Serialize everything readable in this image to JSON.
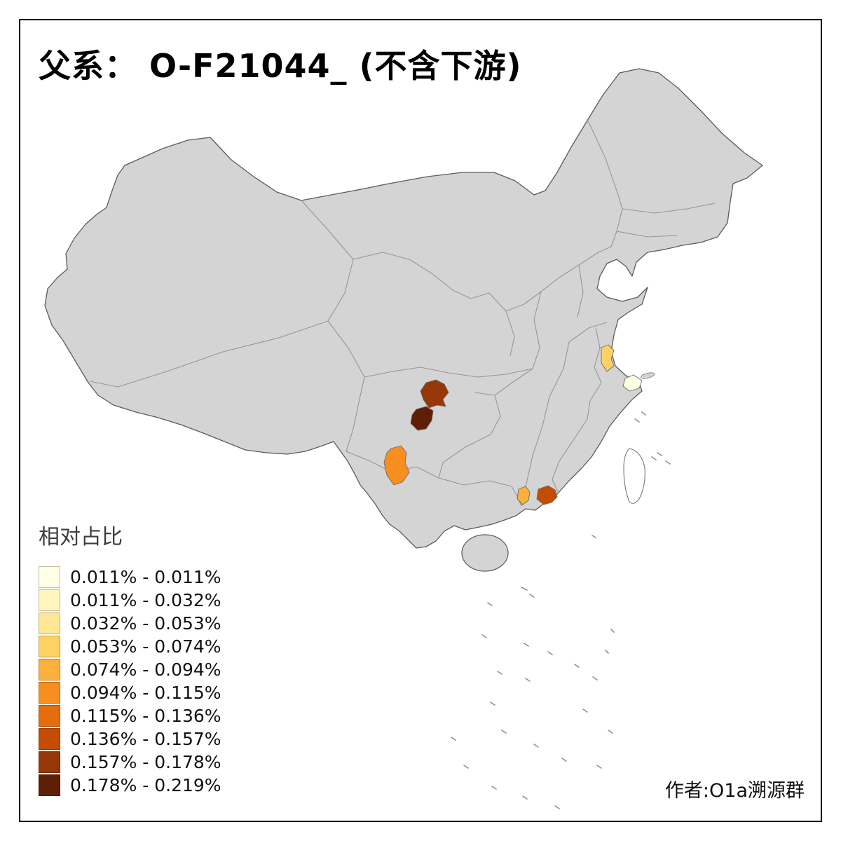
{
  "title": "父系： O-F21044_ (不含下游)",
  "attribution": "作者:O1a溯源群",
  "legend": {
    "title": "相对占比",
    "classes": [
      {
        "label": "0.011% - 0.011%",
        "color": "#FFFFE5"
      },
      {
        "label": "0.011% - 0.032%",
        "color": "#FFF6BE"
      },
      {
        "label": "0.032% - 0.053%",
        "color": "#FEE794"
      },
      {
        "label": "0.053% - 0.074%",
        "color": "#FED163"
      },
      {
        "label": "0.074% - 0.094%",
        "color": "#FDB03C"
      },
      {
        "label": "0.094% - 0.115%",
        "color": "#F78F20"
      },
      {
        "label": "0.115% - 0.136%",
        "color": "#E66D0C"
      },
      {
        "label": "0.136% - 0.157%",
        "color": "#C54D03"
      },
      {
        "label": "0.157% - 0.178%",
        "color": "#963708"
      },
      {
        "label": "0.178% - 0.219%",
        "color": "#5E1F06"
      }
    ]
  },
  "map": {
    "land_fill": "#D4D4D4",
    "country_border_color": "#5B5B5B",
    "province_border_color": "#969696",
    "no_data_island_fill": "#FFFFFF",
    "regions": [
      {
        "id": "region-sichuan-upper",
        "range": "0.157% - 0.178%",
        "color": "#963708"
      },
      {
        "id": "region-sichuan-lower",
        "range": "0.178% - 0.219%",
        "color": "#5E1F06"
      },
      {
        "id": "region-yunnan",
        "range": "0.094% - 0.115%",
        "color": "#F78F20"
      },
      {
        "id": "region-jiangsu",
        "range": "0.053% - 0.074%",
        "color": "#FED163"
      },
      {
        "id": "region-shanghai-coast",
        "range": "0.011% - 0.011%",
        "color": "#FFFFE5"
      },
      {
        "id": "region-guangxi",
        "range": "0.074% - 0.094%",
        "color": "#FDB03C"
      },
      {
        "id": "region-guangdong",
        "range": "0.136% - 0.157%",
        "color": "#C54D03"
      }
    ]
  },
  "chart_data": {
    "type": "choropleth",
    "title": "父系： O-F21044_ (不含下游)",
    "legend_title": "相对占比",
    "bins": [
      "0.011% - 0.011%",
      "0.011% - 0.032%",
      "0.032% - 0.053%",
      "0.053% - 0.074%",
      "0.074% - 0.094%",
      "0.094% - 0.115%",
      "0.115% - 0.136%",
      "0.136% - 0.157%",
      "0.157% - 0.178%",
      "0.178% - 0.219%"
    ],
    "shaded_region_bins": [
      "0.157% - 0.178%",
      "0.178% - 0.219%",
      "0.094% - 0.115%",
      "0.053% - 0.074%",
      "0.011% - 0.011%",
      "0.074% - 0.094%",
      "0.136% - 0.157%"
    ]
  }
}
